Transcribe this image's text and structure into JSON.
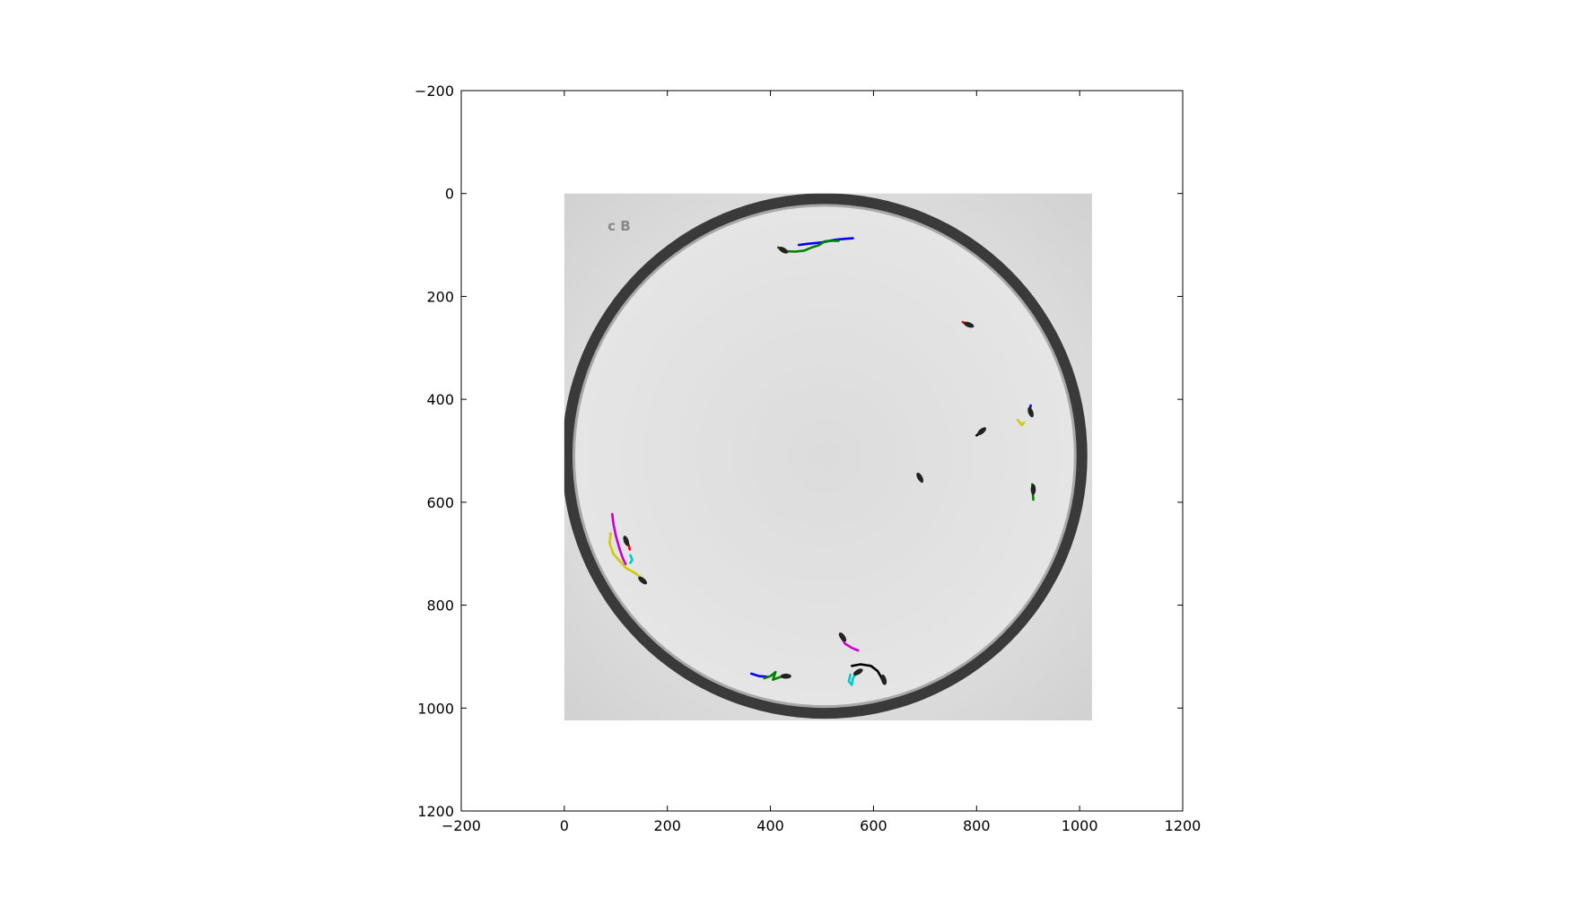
{
  "chart_data": {
    "type": "scatter",
    "title": "",
    "xlabel": "",
    "ylabel": "",
    "xlim": [
      -200,
      1200
    ],
    "ylim": [
      1200,
      -200
    ],
    "x_ticks": [
      -200,
      0,
      200,
      400,
      600,
      800,
      1000,
      1200
    ],
    "y_ticks": [
      -200,
      0,
      200,
      400,
      600,
      800,
      1000,
      1200
    ],
    "x_tick_labels": [
      "−200",
      "0",
      "200",
      "400",
      "600",
      "800",
      "1000",
      "1200"
    ],
    "y_tick_labels": [
      "−200",
      "0",
      "200",
      "400",
      "600",
      "800",
      "1000",
      "1200"
    ],
    "grid": false,
    "image": {
      "extent_x": [
        0,
        1024
      ],
      "extent_y": [
        0,
        1024
      ],
      "plate_center": [
        505,
        510
      ],
      "plate_radius": 510,
      "plate_label": "c B"
    },
    "flies": [
      {
        "x": 425,
        "y": 110,
        "angle": 30
      },
      {
        "x": 785,
        "y": 255,
        "angle": 20
      },
      {
        "x": 810,
        "y": 462,
        "angle": -40
      },
      {
        "x": 905,
        "y": 425,
        "angle": 70
      },
      {
        "x": 690,
        "y": 552,
        "angle": 60
      },
      {
        "x": 910,
        "y": 575,
        "angle": 90
      },
      {
        "x": 120,
        "y": 675,
        "angle": 70
      },
      {
        "x": 152,
        "y": 752,
        "angle": 40
      },
      {
        "x": 430,
        "y": 938,
        "angle": 0
      },
      {
        "x": 540,
        "y": 862,
        "angle": 55
      },
      {
        "x": 620,
        "y": 945,
        "angle": 75
      },
      {
        "x": 570,
        "y": 930,
        "angle": -30
      }
    ],
    "series": [
      {
        "color": "#0000ff",
        "points": [
          [
            455,
            100
          ],
          [
            470,
            98
          ],
          [
            500,
            95
          ],
          [
            525,
            90
          ],
          [
            545,
            88
          ],
          [
            560,
            87
          ]
        ]
      },
      {
        "color": "#008000",
        "points": [
          [
            415,
            105
          ],
          [
            430,
            112
          ],
          [
            448,
            113
          ],
          [
            465,
            111
          ],
          [
            480,
            105
          ],
          [
            495,
            100
          ],
          [
            505,
            93
          ],
          [
            515,
            92
          ],
          [
            532,
            92
          ]
        ]
      },
      {
        "color": "#ff0000",
        "points": [
          [
            773,
            250
          ],
          [
            790,
            256
          ]
        ]
      },
      {
        "color": "#000000",
        "points": [
          [
            800,
            470
          ],
          [
            815,
            460
          ]
        ]
      },
      {
        "color": "#cccc00",
        "points": [
          [
            880,
            440
          ],
          [
            888,
            450
          ],
          [
            892,
            445
          ]
        ]
      },
      {
        "color": "#0000ff",
        "points": [
          [
            902,
            425
          ],
          [
            905,
            412
          ]
        ]
      },
      {
        "color": "#008000",
        "points": [
          [
            908,
            565
          ],
          [
            910,
            595
          ]
        ]
      },
      {
        "color": "#000000",
        "points": [
          [
            686,
            545
          ],
          [
            694,
            560
          ]
        ]
      },
      {
        "color": "#cc00cc",
        "points": [
          [
            93,
            623
          ],
          [
            95,
            640
          ],
          [
            100,
            665
          ],
          [
            107,
            690
          ],
          [
            114,
            710
          ],
          [
            119,
            720
          ]
        ]
      },
      {
        "color": "#cccc00",
        "points": [
          [
            90,
            660
          ],
          [
            88,
            680
          ],
          [
            95,
            700
          ],
          [
            108,
            715
          ],
          [
            120,
            728
          ],
          [
            138,
            738
          ],
          [
            155,
            752
          ]
        ]
      },
      {
        "color": "#ff0000",
        "points": [
          [
            125,
            683
          ],
          [
            127,
            692
          ]
        ]
      },
      {
        "color": "#00cccc",
        "points": [
          [
            128,
            703
          ],
          [
            132,
            712
          ],
          [
            128,
            718
          ]
        ]
      },
      {
        "color": "#0000ff",
        "points": [
          [
            363,
            933
          ],
          [
            378,
            938
          ],
          [
            393,
            939
          ]
        ]
      },
      {
        "color": "#008000",
        "points": [
          [
            388,
            942
          ],
          [
            400,
            938
          ],
          [
            410,
            930
          ],
          [
            405,
            945
          ],
          [
            418,
            940
          ],
          [
            432,
            938
          ]
        ]
      },
      {
        "color": "#cc00cc",
        "points": [
          [
            535,
            858
          ],
          [
            545,
            875
          ],
          [
            558,
            883
          ],
          [
            570,
            888
          ]
        ]
      },
      {
        "color": "#000000",
        "points": [
          [
            558,
            918
          ],
          [
            575,
            915
          ],
          [
            595,
            918
          ],
          [
            608,
            928
          ],
          [
            615,
            940
          ],
          [
            620,
            952
          ]
        ]
      },
      {
        "color": "#00cccc",
        "points": [
          [
            555,
            935
          ],
          [
            552,
            948
          ],
          [
            558,
            955
          ],
          [
            560,
            942
          ],
          [
            567,
            932
          ]
        ]
      }
    ]
  }
}
